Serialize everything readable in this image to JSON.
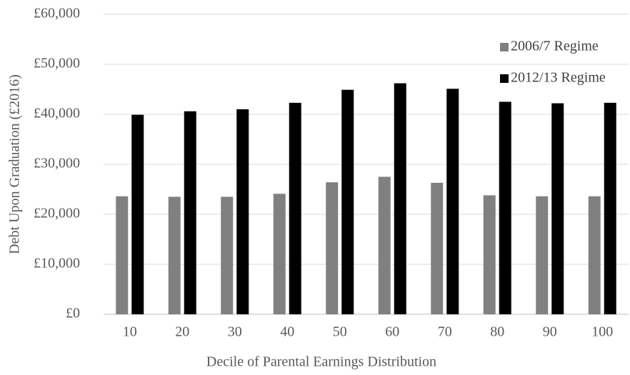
{
  "chart_data": {
    "type": "grouped-bar",
    "x_label": "Decile of Parental Earnings Distribution",
    "y_label": "Debt Upon Graduation (£2016)",
    "categories": [
      "10",
      "20",
      "30",
      "40",
      "50",
      "60",
      "70",
      "80",
      "90",
      "100"
    ],
    "series": [
      {
        "name": "2006/7 Regime",
        "color": "#808080",
        "values": [
          23600,
          23500,
          23500,
          24100,
          26400,
          27500,
          26300,
          23800,
          23600,
          23600
        ]
      },
      {
        "name": "2012/13 Regime",
        "color": "#000000",
        "values": [
          39900,
          40600,
          41000,
          42300,
          44900,
          46200,
          45100,
          42500,
          42200,
          42300
        ]
      }
    ],
    "ylim": [
      0,
      60000
    ],
    "yticks": [
      {
        "value": 0,
        "label": "£0"
      },
      {
        "value": 10000,
        "label": "£10,000"
      },
      {
        "value": 20000,
        "label": "£20,000"
      },
      {
        "value": 30000,
        "label": "£30,000"
      },
      {
        "value": 40000,
        "label": "£40,000"
      },
      {
        "value": 50000,
        "label": "£50,000"
      },
      {
        "value": 60000,
        "label": "£60,000"
      }
    ],
    "grid": true,
    "legend": "top-right"
  }
}
